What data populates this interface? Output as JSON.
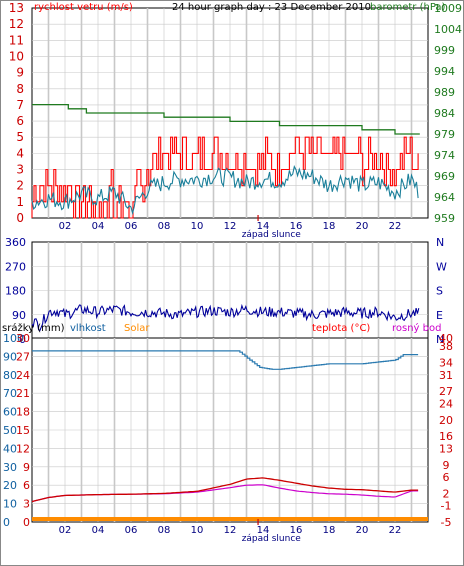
{
  "header": {
    "title": "24 hour graph day : 23 December 2010",
    "wind_label": "rychlost vetru (m/s)",
    "baro_label": "barometr (hPa)"
  },
  "colors": {
    "wind": "#ff0000",
    "gust": "#1a7f9a",
    "baro": "#1f7a1f",
    "direction": "#00009a",
    "humidity": "#2a7ab0",
    "solar": "#ff8c00",
    "temp": "#cc0000",
    "dew": "#cc00cc",
    "left_axis": "#cc0000",
    "baro_axis": "#1f7a1f",
    "blue_axis": "#1060a0",
    "grid": "#c8c8c8"
  },
  "x_axis": {
    "ticks": [
      "02",
      "04",
      "06",
      "08",
      "10",
      "12",
      "14",
      "16",
      "18",
      "20",
      "22"
    ],
    "sunrise_label": "západ slunce"
  },
  "chart_data": [
    {
      "type": "line",
      "name": "wind-baro",
      "ylim": [
        0,
        13
      ],
      "y2lim": [
        959,
        1009
      ],
      "yticks": [
        "0",
        "1",
        "2",
        "3",
        "4",
        "5",
        "6",
        "7",
        "8",
        "9",
        "10",
        "11",
        "12",
        "13"
      ],
      "y2ticks": [
        "959",
        "964",
        "969",
        "974",
        "979",
        "984",
        "989",
        "994",
        "999",
        "1004",
        "1009"
      ],
      "series": [
        {
          "name": "barometr (hPa)",
          "axis": "right",
          "x": [
            0,
            2,
            2.2,
            3,
            3.3,
            4,
            6,
            7,
            8,
            9,
            10,
            11,
            12,
            13,
            14,
            15,
            16,
            17,
            18,
            19,
            20,
            21,
            22,
            23.5
          ],
          "values": [
            986,
            986,
            985,
            985,
            984,
            984,
            984,
            984,
            983,
            983,
            983,
            983,
            982,
            982,
            982,
            981,
            981,
            981,
            981,
            981,
            980,
            980,
            979,
            979
          ]
        },
        {
          "name": "",
          "axis": "left",
          "x": [
            0,
            1,
            2,
            3,
            4,
            5,
            6,
            7,
            8,
            9,
            10,
            11,
            12,
            13,
            14,
            15,
            16,
            17,
            18,
            19,
            20,
            21,
            22,
            23,
            23.5
          ],
          "values": [
            1.0,
            1.2,
            1.0,
            1.5,
            1.2,
            1.6,
            0.6,
            1.8,
            2.2,
            2.4,
            2.4,
            2.6,
            2.5,
            2.2,
            2.4,
            2.3,
            2.8,
            2.6,
            2.0,
            2.5,
            2.0,
            2.2,
            1.6,
            2.4,
            1.5
          ]
        },
        {
          "name": "",
          "axis": "left",
          "x": [
            0,
            1,
            2,
            3,
            4,
            5,
            6,
            7,
            8,
            9,
            10,
            11,
            12,
            13,
            14,
            15,
            16,
            17,
            18,
            19,
            20,
            21,
            22,
            23,
            23.5
          ],
          "values": [
            1.5,
            2.0,
            2.0,
            1.0,
            2.0,
            2.0,
            1.0,
            3.0,
            4.0,
            4.0,
            4.0,
            4.0,
            3.5,
            3.5,
            3.5,
            3.5,
            4.5,
            4.0,
            3.5,
            4.0,
            3.5,
            3.5,
            3.0,
            4.0,
            3.0
          ]
        }
      ]
    },
    {
      "type": "line",
      "name": "direction",
      "ylim": [
        0,
        360
      ],
      "yticks": [
        "0",
        "90",
        "180",
        "270",
        "360"
      ],
      "y2ticks": [
        "N",
        "E",
        "S",
        "W",
        "N"
      ],
      "series": [
        {
          "name": "",
          "x": [
            0,
            0.5,
            1,
            1.5,
            2,
            3,
            4,
            5,
            6,
            7,
            8,
            9,
            10,
            11,
            12,
            13,
            14,
            15,
            16,
            17,
            18,
            19,
            20,
            21,
            22,
            23,
            23.5
          ],
          "values": [
            70,
            50,
            100,
            105,
            90,
            110,
            100,
            110,
            100,
            100,
            95,
            90,
            100,
            105,
            100,
            110,
            100,
            100,
            95,
            90,
            95,
            100,
            95,
            100,
            80,
            95,
            95
          ]
        }
      ]
    },
    {
      "type": "line",
      "name": "rain-humidity-temp",
      "labels": {
        "rain": "srážky (mm)",
        "humidity": "vlhkost",
        "solar": "Solar",
        "temp": "teplota (°C)",
        "dew": "rosný bod"
      },
      "ylim": [
        -5,
        40
      ],
      "humidity_ylim": [
        0,
        100
      ],
      "yticks_blue": [
        "0",
        "10",
        "20",
        "30",
        "40",
        "50",
        "60",
        "70",
        "80",
        "90",
        "100"
      ],
      "yticks_red": [
        "0",
        "3",
        "6",
        "9",
        "12",
        "15",
        "18",
        "21",
        "24",
        "27",
        "30"
      ],
      "y2ticks": [
        "-5",
        "-1",
        "2",
        "6",
        "9",
        "13",
        "16",
        "20",
        "24",
        "27",
        "31",
        "34",
        "38",
        "40"
      ],
      "series": [
        {
          "name": "vlhkost",
          "x": [
            0,
            12.5,
            13.2,
            13.8,
            14.5,
            15,
            16,
            17,
            18,
            19,
            20,
            21,
            22,
            22.5,
            23,
            23.5
          ],
          "values": [
            93,
            93,
            88,
            84,
            83,
            83,
            84,
            85,
            86,
            86,
            86,
            87,
            88,
            91,
            91,
            91
          ]
        },
        {
          "name": "teplota (°C)",
          "x": [
            0,
            1,
            2,
            4,
            6,
            8,
            10,
            12,
            13,
            14,
            15,
            16,
            17,
            18,
            19,
            20,
            21,
            22,
            23,
            23.5
          ],
          "values": [
            0,
            1.0,
            1.5,
            1.7,
            1.8,
            2.0,
            2.5,
            4.2,
            5.5,
            5.8,
            5.2,
            4.5,
            3.8,
            3.3,
            3.0,
            2.9,
            2.6,
            2.3,
            2.8,
            2.8
          ]
        },
        {
          "name": "rosný bod",
          "x": [
            0,
            1,
            2,
            4,
            6,
            8,
            10,
            12,
            13,
            14,
            15,
            16,
            17,
            18,
            19,
            20,
            21,
            22,
            23,
            23.5
          ],
          "values": [
            0,
            1.0,
            1.5,
            1.7,
            1.8,
            1.9,
            2.3,
            3.4,
            4.0,
            4.1,
            3.3,
            2.6,
            2.2,
            1.9,
            1.8,
            1.6,
            1.3,
            1.1,
            2.6,
            2.6
          ]
        },
        {
          "name": "Solar",
          "x": [
            0,
            23.5
          ],
          "values": [
            0,
            0
          ]
        }
      ]
    }
  ]
}
